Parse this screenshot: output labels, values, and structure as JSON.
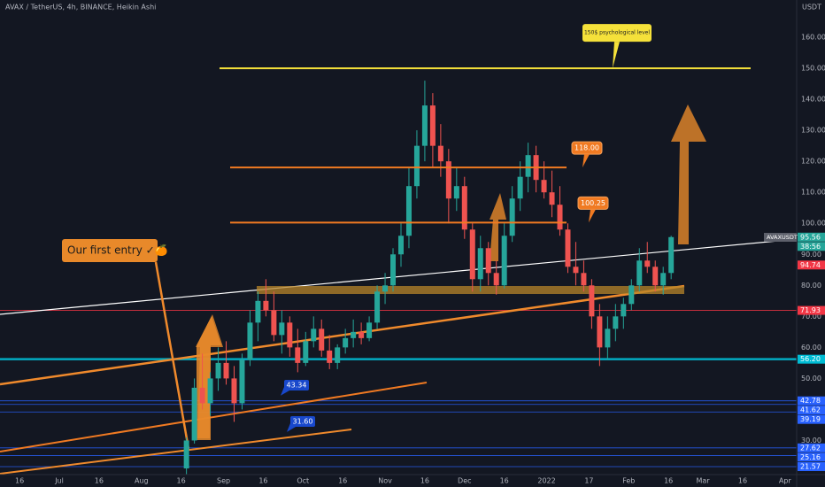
{
  "chart_data": {
    "type": "candlestick",
    "title": "AVAX / TetherUS, 4h, BINANCE, Heikin Ashi",
    "currency": "USDT",
    "symbol_tag": "AVAXUSDT",
    "countdown": "38:56",
    "up_color": "#26a69a",
    "down_color": "#ef5350",
    "grid": true,
    "x": [
      78,
      81,
      84,
      87,
      90,
      93,
      96,
      99,
      102,
      105,
      108,
      111,
      114,
      117,
      120,
      123,
      126,
      129,
      132,
      135,
      138,
      141,
      144,
      147,
      150,
      153,
      156,
      159,
      162,
      165,
      168,
      171,
      174,
      177,
      180,
      183,
      186,
      189,
      192,
      195,
      198,
      201,
      204,
      207,
      210,
      213,
      216,
      219,
      222,
      225,
      228,
      231,
      234,
      237,
      240,
      243,
      246,
      249,
      252,
      255,
      258,
      261
    ],
    "open": [
      21,
      30,
      47,
      42,
      50,
      55,
      50,
      42,
      56,
      68,
      75,
      72,
      64,
      68,
      60,
      55,
      62,
      66,
      59,
      55,
      60,
      63,
      65,
      63,
      68,
      78,
      80,
      90,
      96,
      112,
      125,
      138,
      125,
      120,
      108,
      112,
      98,
      82,
      92,
      84,
      80,
      96,
      108,
      115,
      122,
      114,
      110,
      106,
      98,
      86,
      84,
      80,
      70,
      60,
      66,
      70,
      74,
      80,
      88,
      86,
      80,
      84
    ],
    "high": [
      31,
      50,
      58,
      52,
      60,
      62,
      54,
      58,
      72,
      78,
      82,
      78,
      72,
      70,
      66,
      65,
      70,
      69,
      64,
      61,
      66,
      69,
      68,
      70,
      80,
      84,
      92,
      100,
      118,
      130,
      146,
      142,
      132,
      124,
      118,
      115,
      100,
      96,
      94,
      88,
      100,
      112,
      120,
      126,
      125,
      120,
      117,
      112,
      100,
      94,
      88,
      82,
      74,
      70,
      74,
      76,
      82,
      92,
      94,
      88,
      86,
      96
    ],
    "low": [
      19,
      29,
      40,
      38,
      46,
      48,
      36,
      40,
      54,
      62,
      70,
      62,
      58,
      57,
      52,
      54,
      60,
      57,
      53,
      53,
      58,
      60,
      61,
      62,
      66,
      74,
      78,
      86,
      92,
      108,
      120,
      118,
      115,
      100,
      104,
      95,
      78,
      78,
      80,
      77,
      79,
      94,
      104,
      110,
      110,
      108,
      102,
      96,
      84,
      80,
      78,
      66,
      54,
      56,
      62,
      66,
      72,
      78,
      84,
      78,
      77,
      82
    ],
    "close": [
      30,
      47,
      42,
      50,
      55,
      50,
      42,
      56,
      68,
      75,
      72,
      64,
      68,
      60,
      55,
      62,
      66,
      59,
      55,
      60,
      63,
      65,
      63,
      68,
      78,
      80,
      90,
      96,
      112,
      125,
      138,
      125,
      120,
      108,
      112,
      98,
      82,
      92,
      84,
      80,
      96,
      108,
      115,
      122,
      114,
      110,
      106,
      98,
      86,
      84,
      80,
      70,
      60,
      66,
      70,
      74,
      80,
      88,
      86,
      80,
      84,
      95.56
    ],
    "xlim": [
      7.6,
      308.4
    ],
    "xticks": [
      {
        "value": 15,
        "label": "16"
      },
      {
        "value": 30,
        "label": "Jul"
      },
      {
        "value": 45,
        "label": "16"
      },
      {
        "value": 61,
        "label": "Aug"
      },
      {
        "value": 76,
        "label": "16"
      },
      {
        "value": 92,
        "label": "Sep"
      },
      {
        "value": 107,
        "label": "16"
      },
      {
        "value": 122,
        "label": "Oct"
      },
      {
        "value": 137,
        "label": "16"
      },
      {
        "value": 153,
        "label": "Nov"
      },
      {
        "value": 168,
        "label": "16"
      },
      {
        "value": 183,
        "label": "Dec"
      },
      {
        "value": 198,
        "label": "16"
      },
      {
        "value": 214,
        "label": "2022"
      },
      {
        "value": 230,
        "label": "17"
      },
      {
        "value": 245,
        "label": "Feb"
      },
      {
        "value": 260,
        "label": "16"
      },
      {
        "value": 273,
        "label": "Mar"
      },
      {
        "value": 288,
        "label": "16"
      },
      {
        "value": 304,
        "label": "Apr"
      }
    ],
    "ylim": [
      19,
      172
    ],
    "yticks": [
      {
        "value": 30,
        "label": "30.00"
      },
      {
        "value": 50,
        "label": "50.00"
      },
      {
        "value": 60,
        "label": "60.00"
      },
      {
        "value": 70,
        "label": "70.00"
      },
      {
        "value": 80,
        "label": "80.00"
      },
      {
        "value": 90,
        "label": "90.00"
      },
      {
        "value": 100,
        "label": "100.00"
      },
      {
        "value": 110,
        "label": "110.00"
      },
      {
        "value": 120,
        "label": "120.00"
      },
      {
        "value": 130,
        "label": "130.00"
      },
      {
        "value": 140,
        "label": "140.00"
      },
      {
        "value": 150,
        "label": "150.00"
      },
      {
        "value": 160,
        "label": "160.00"
      }
    ],
    "levels": [
      {
        "value": 95.56,
        "label": "95.56",
        "color": "#26a69a",
        "line": false
      },
      {
        "value": 94.74,
        "label": "94.74",
        "color": "#f23645",
        "line": false
      },
      {
        "value": 71.93,
        "label": "71.93",
        "color": "#f23645",
        "line": true
      },
      {
        "value": 56.2,
        "label": "56.20",
        "color": "#00bcd4",
        "line": true
      },
      {
        "value": 42.78,
        "label": "42.78",
        "color": "#2962ff",
        "line": true
      },
      {
        "value": 41.62,
        "label": "41.62",
        "color": "#2962ff",
        "line": true
      },
      {
        "value": 39.19,
        "label": "39.19",
        "color": "#2962ff",
        "line": true
      },
      {
        "value": 27.62,
        "label": "27.62",
        "color": "#2962ff",
        "line": true
      },
      {
        "value": 25.16,
        "label": "25.16",
        "color": "#2962ff",
        "line": true
      },
      {
        "value": 21.57,
        "label": "21.57",
        "color": "#2962ff",
        "line": true
      }
    ],
    "annotation_lines": [
      {
        "value": 150,
        "label": "150$ psychological level",
        "color": "#f5e13a"
      },
      {
        "value": 118,
        "label": "118.00",
        "color": "#f07a22"
      },
      {
        "value": 100.25,
        "label": "100.25",
        "color": "#f07a22"
      }
    ],
    "callouts": [
      {
        "value": 43.34,
        "label": "43.34"
      },
      {
        "value": 31.6,
        "label": "31.60"
      }
    ],
    "note": "Our first entry ✓🍊"
  }
}
